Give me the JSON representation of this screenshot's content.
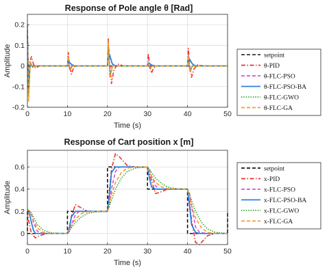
{
  "chart_data": [
    {
      "type": "line",
      "title": "Response of Pole angle θ [Rad]",
      "xlabel": "Time (s)",
      "ylabel": "Amplitude",
      "xlim": [
        0,
        50
      ],
      "ylim": [
        -0.2,
        0.25
      ],
      "xticks": [
        "0",
        "10",
        "20",
        "30",
        "40",
        "50"
      ],
      "yticks": [
        "0.2",
        "0.1",
        "0",
        "-0.1",
        "-0.2"
      ],
      "grid": true,
      "legend_position": "outside-right",
      "series": [
        {
          "name": "setpoint",
          "color": "#333333",
          "style": "dashed",
          "x": [
            0,
            50
          ],
          "y": [
            0,
            0
          ]
        },
        {
          "name": "θ-PID",
          "color": "#e8332a",
          "style": "dashdot",
          "x": [
            0,
            0.3,
            0.6,
            1,
            1.5,
            2,
            3,
            4,
            10,
            10.2,
            10.5,
            11,
            11.5,
            12,
            20,
            20.2,
            20.5,
            21,
            21.6,
            22.5,
            24,
            30,
            30.2,
            30.5,
            31,
            31.5,
            32.5,
            40,
            40.2,
            40.5,
            41,
            41.6,
            42.5,
            44,
            50
          ],
          "y": [
            0,
            -0.13,
            0.02,
            0.045,
            0.01,
            -0.01,
            0,
            0,
            0,
            0.065,
            0.01,
            -0.04,
            -0.01,
            0,
            0,
            0.135,
            0.02,
            -0.085,
            -0.02,
            0.01,
            0,
            0,
            0.06,
            0.01,
            -0.035,
            -0.01,
            0,
            0,
            0.085,
            0.01,
            -0.055,
            -0.015,
            0.005,
            0,
            0
          ]
        },
        {
          "name": "θ-FLC-PSO",
          "color": "#d64fd6",
          "style": "dashed",
          "x": [
            0,
            0.3,
            0.7,
            1.2,
            2,
            10,
            10.2,
            10.6,
            11.2,
            12,
            20,
            20.2,
            20.6,
            21.2,
            22,
            30,
            30.2,
            30.6,
            31.2,
            32,
            40,
            40.2,
            40.6,
            41.2,
            42,
            50
          ],
          "y": [
            0.2,
            -0.12,
            0.02,
            -0.005,
            0,
            0,
            0.04,
            -0.02,
            0,
            0,
            0,
            0.1,
            -0.05,
            0,
            0,
            0,
            0.015,
            -0.01,
            0,
            0,
            0,
            0.05,
            -0.02,
            0,
            0,
            0
          ]
        },
        {
          "name": "θ-FLC-PSO-BA",
          "color": "#2a7fe0",
          "style": "solid",
          "x": [
            0,
            0.3,
            0.7,
            1.2,
            2,
            10,
            10.2,
            10.6,
            11.2,
            12,
            20,
            20.2,
            20.6,
            21.2,
            22,
            30,
            30.2,
            30.6,
            31.2,
            32,
            40,
            40.2,
            40.6,
            41.2,
            42,
            50
          ],
          "y": [
            0.15,
            -0.1,
            0.01,
            0,
            0,
            0,
            0.02,
            0.015,
            0.005,
            0,
            0,
            0.07,
            0.05,
            0.01,
            0,
            0,
            0.015,
            0.01,
            0.003,
            0,
            0,
            0.04,
            0.03,
            0.01,
            0,
            0
          ]
        },
        {
          "name": "θ-FLC-GWO",
          "color": "#22a022",
          "style": "dotted",
          "x": [
            0,
            0.3,
            0.7,
            1.3,
            2.2,
            10,
            10.2,
            10.6,
            11.3,
            12.2,
            20,
            20.2,
            20.6,
            21.3,
            22.2,
            30,
            30.2,
            30.6,
            31.3,
            32.2,
            40,
            40.2,
            40.6,
            41.3,
            42.2,
            50
          ],
          "y": [
            0.18,
            -0.14,
            0.02,
            -0.005,
            0,
            0,
            0.04,
            -0.015,
            0,
            0,
            0,
            0.11,
            -0.045,
            0,
            0,
            0,
            0.012,
            -0.01,
            0,
            0,
            0,
            0.045,
            -0.025,
            0,
            0,
            0
          ]
        },
        {
          "name": "θ-FLC-GA",
          "color": "#f59a23",
          "style": "dashed",
          "x": [
            0,
            0.3,
            0.7,
            1.3,
            2.2,
            10,
            10.2,
            10.6,
            11.3,
            12.2,
            20,
            20.2,
            20.6,
            21.3,
            22.2,
            30,
            30.2,
            30.6,
            31.3,
            32.2,
            40,
            40.2,
            40.6,
            41.3,
            42.2,
            50
          ],
          "y": [
            0.16,
            -0.17,
            0.02,
            -0.005,
            0,
            0,
            0.045,
            -0.02,
            0,
            0,
            0,
            0.12,
            -0.06,
            0,
            0,
            0,
            0.013,
            -0.01,
            0,
            0,
            0,
            0.05,
            -0.03,
            0,
            0,
            0
          ]
        }
      ]
    },
    {
      "type": "line",
      "title": "Response of Cart position x [m]",
      "xlabel": "Time (s)",
      "ylabel": "Amplitude",
      "xlim": [
        0,
        50
      ],
      "ylim": [
        -0.1,
        0.75
      ],
      "xticks": [
        "0",
        "10",
        "20",
        "30",
        "40",
        "50"
      ],
      "yticks": [
        "0.6",
        "0.4",
        "0.2",
        "0"
      ],
      "grid": true,
      "legend_position": "outside-right",
      "series": [
        {
          "name": "setpoint",
          "color": "#111111",
          "style": "dashed",
          "x": [
            0,
            0,
            10,
            10,
            20,
            20,
            30,
            30,
            40,
            40,
            50,
            50
          ],
          "y": [
            0.2,
            0,
            0,
            0.2,
            0.2,
            0.6,
            0.6,
            0.4,
            0.4,
            0,
            0,
            0.2
          ]
        },
        {
          "name": "x-PID",
          "color": "#e8332a",
          "style": "dashdot",
          "x": [
            0,
            0.3,
            1,
            2,
            3,
            5,
            7,
            10,
            10.5,
            11,
            12,
            13,
            15,
            17,
            20,
            20.5,
            21,
            22,
            23,
            25,
            27,
            30,
            30.5,
            31,
            32,
            33,
            35,
            37,
            40,
            40.5,
            41,
            42,
            43,
            45,
            47,
            50
          ],
          "y": [
            0.2,
            0.12,
            0,
            -0.04,
            -0.02,
            0,
            0,
            0,
            0.06,
            0.16,
            0.26,
            0.24,
            0.2,
            0.2,
            0.2,
            0.4,
            0.58,
            0.72,
            0.69,
            0.61,
            0.6,
            0.6,
            0.55,
            0.48,
            0.36,
            0.37,
            0.4,
            0.4,
            0.4,
            0.28,
            0.12,
            -0.08,
            -0.1,
            -0.02,
            0,
            0
          ]
        },
        {
          "name": "x-FLC-PSO",
          "color": "#d64fd6",
          "style": "dashed",
          "x": [
            0,
            0.5,
            1,
            1.5,
            2.5,
            4,
            10,
            10.5,
            11,
            12,
            13,
            15,
            20,
            20.5,
            21,
            22,
            23,
            25,
            30,
            30.5,
            31,
            32,
            33,
            35,
            40,
            40.5,
            41,
            42,
            43,
            45,
            50
          ],
          "y": [
            0.2,
            0.2,
            0.18,
            0.1,
            0.02,
            0,
            0,
            0.02,
            0.08,
            0.17,
            0.2,
            0.2,
            0.2,
            0.25,
            0.4,
            0.56,
            0.6,
            0.6,
            0.6,
            0.58,
            0.52,
            0.43,
            0.4,
            0.4,
            0.4,
            0.36,
            0.25,
            0.06,
            0.01,
            0,
            0
          ]
        },
        {
          "name": "x-FLC-PSO-BA",
          "color": "#2a7fe0",
          "style": "solid",
          "x": [
            0,
            0.5,
            1,
            1.5,
            2,
            3,
            10,
            10.5,
            11,
            12,
            13,
            20,
            20.5,
            21,
            22,
            23,
            30,
            30.5,
            31,
            32,
            33,
            40,
            40.5,
            41,
            42,
            43,
            50
          ],
          "y": [
            0.2,
            0.18,
            0.1,
            0.03,
            0,
            0,
            0,
            0.05,
            0.15,
            0.2,
            0.2,
            0.2,
            0.35,
            0.55,
            0.6,
            0.6,
            0.6,
            0.5,
            0.42,
            0.4,
            0.4,
            0.4,
            0.25,
            0.08,
            0.01,
            0,
            0
          ]
        },
        {
          "name": "x-FLC-GWO",
          "color": "#22a022",
          "style": "dotted",
          "x": [
            0,
            0.7,
            1.5,
            2.5,
            4,
            6,
            10,
            11,
            12,
            13.5,
            15,
            17,
            20,
            21,
            22,
            23.5,
            25,
            27,
            30,
            31,
            32,
            33.5,
            35,
            37,
            40,
            41,
            42,
            43.5,
            45,
            47,
            50
          ],
          "y": [
            0.22,
            0.2,
            0.15,
            0.08,
            0.03,
            0.005,
            0,
            0.05,
            0.1,
            0.15,
            0.18,
            0.195,
            0.2,
            0.3,
            0.4,
            0.5,
            0.56,
            0.59,
            0.6,
            0.55,
            0.5,
            0.45,
            0.42,
            0.405,
            0.4,
            0.3,
            0.2,
            0.1,
            0.04,
            0.01,
            0
          ]
        },
        {
          "name": "x-FLC-GA",
          "color": "#f59a23",
          "style": "dashed",
          "x": [
            0,
            0.7,
            1.5,
            2.5,
            4,
            6,
            10,
            11,
            12,
            13.5,
            15,
            17,
            20,
            21,
            22,
            23.5,
            25,
            27,
            30,
            31,
            32,
            33.5,
            35,
            37,
            40,
            41,
            42,
            43.5,
            45,
            47,
            50
          ],
          "y": [
            0.22,
            0.19,
            0.12,
            0.05,
            0.01,
            0,
            0,
            0.07,
            0.13,
            0.18,
            0.195,
            0.2,
            0.2,
            0.35,
            0.46,
            0.55,
            0.59,
            0.6,
            0.6,
            0.52,
            0.46,
            0.42,
            0.405,
            0.4,
            0.4,
            0.25,
            0.14,
            0.05,
            0.01,
            0,
            0
          ]
        }
      ]
    }
  ]
}
